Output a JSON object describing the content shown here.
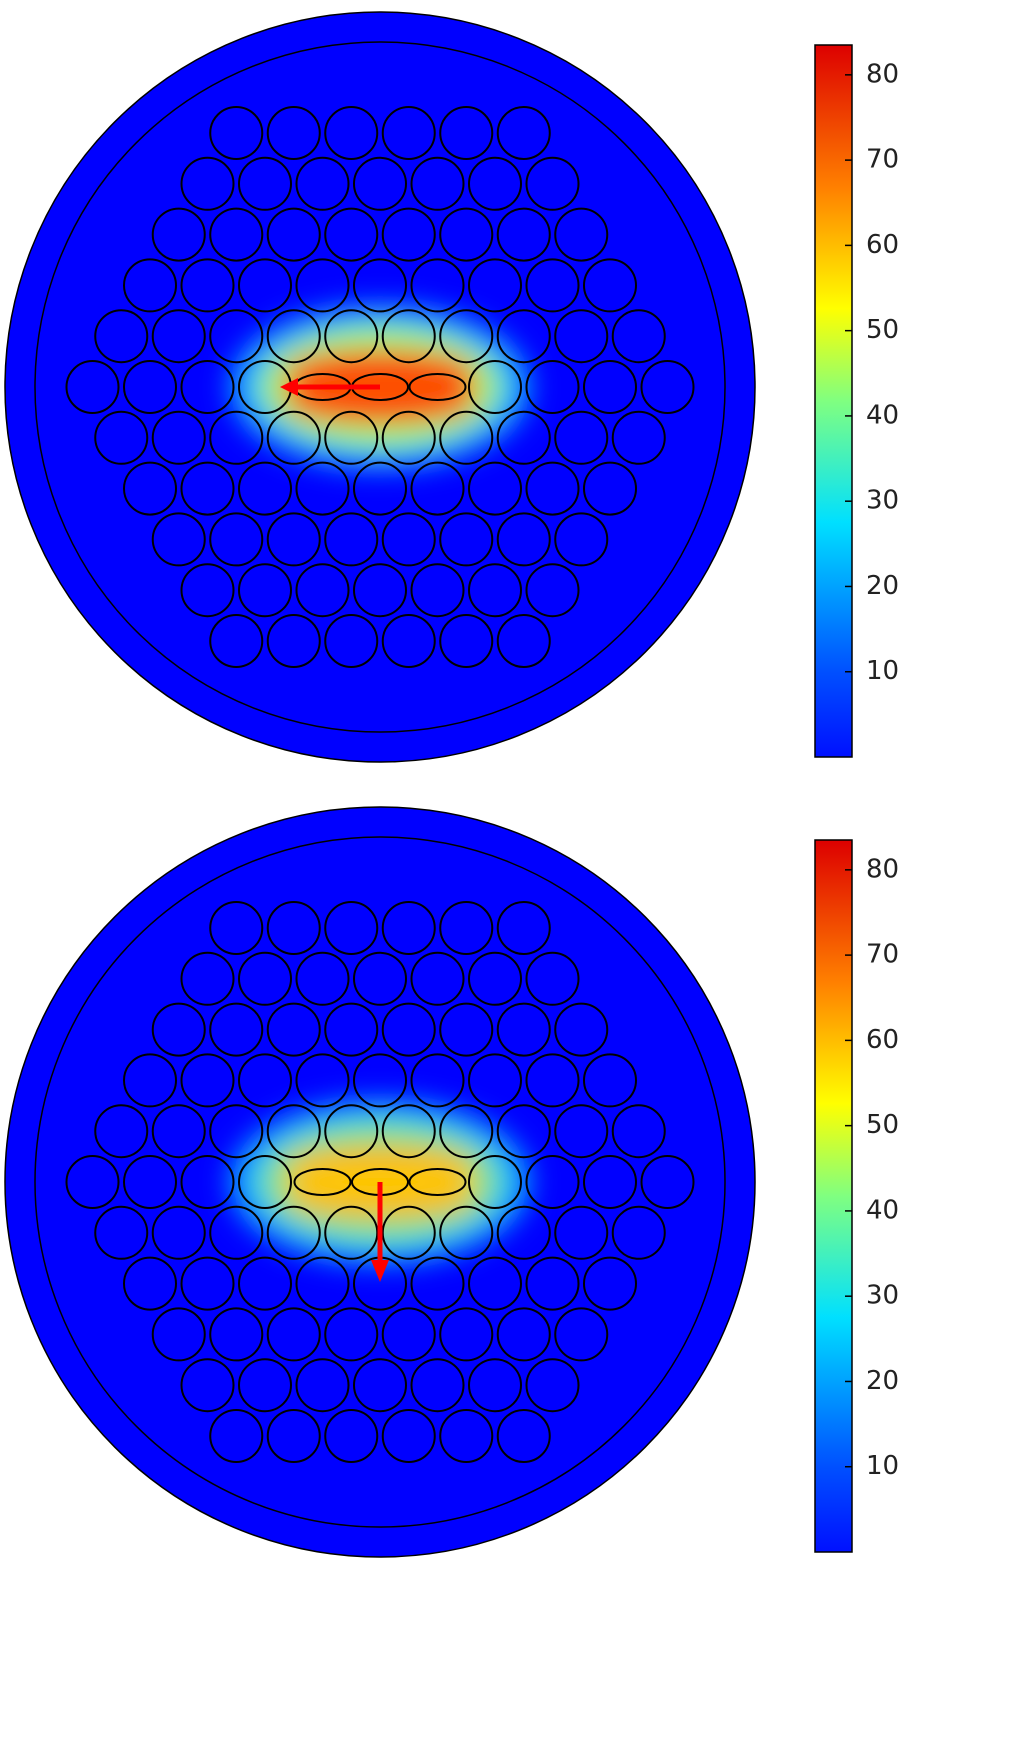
{
  "chart_data": [
    {
      "type": "heatmap",
      "clim": [
        0,
        83.5
      ],
      "cticks": [
        10,
        20,
        30,
        40,
        50,
        60,
        70,
        80
      ],
      "colormap": "jet",
      "arrow": "left",
      "peak": 1.0
    },
    {
      "type": "heatmap",
      "clim": [
        0,
        83.5
      ],
      "cticks": [
        10,
        20,
        30,
        40,
        50,
        60,
        70,
        80
      ],
      "colormap": "jet",
      "arrow": "down",
      "peak": 0.72
    }
  ]
}
